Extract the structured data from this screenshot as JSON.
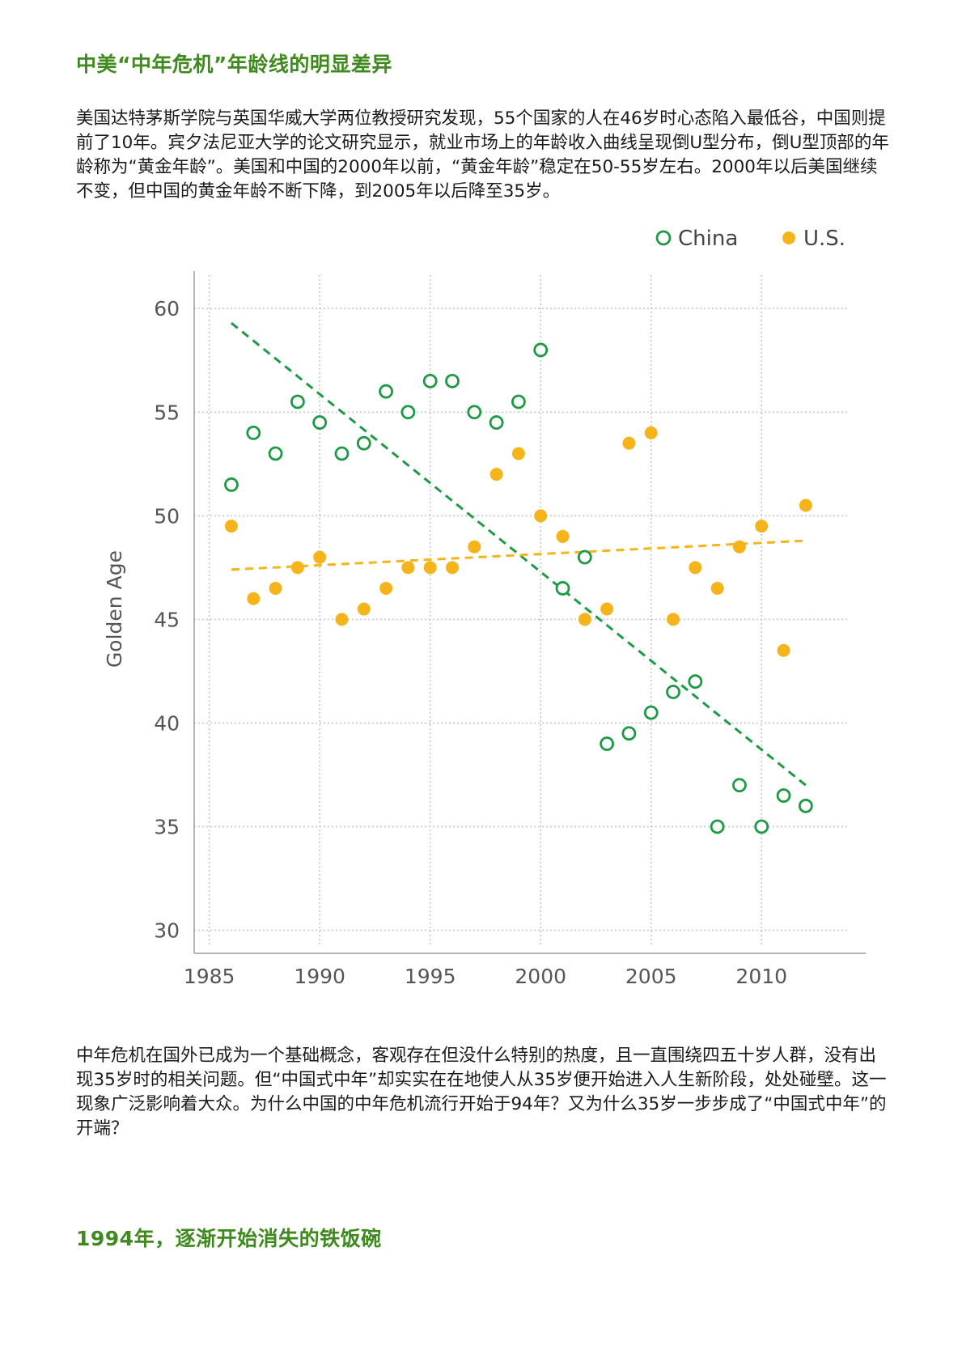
{
  "article": {
    "heading_1": "中美“中年危机”年龄线的明显差异",
    "paragraph_1": "美国达特茅斯学院与英国华威大学两位教授研究发现，55个国家的人在46岁时心态陷入最低谷，中国则提前了10年。宾夕法尼亚大学的论文研究显示，就业市场上的年龄收入曲线呈现倒U型分布，倒U型顶部的年龄称为“黄金年龄”。美国和中国的2000年以前，“黄金年龄”稳定在50-55岁左右。2000年以后美国继续不变，但中国的黄金年龄不断下降，到2005年以后降至35岁。",
    "paragraph_2": "中年危机在国外已成为一个基础概念，客观存在但没什么特别的热度，且一直围绕四五十岁人群，没有出现35岁时的相关问题。但“中国式中年”却实实在在地使人从35岁便开始进入人生新阶段，处处碰壁。这一现象广泛影响着大众。为什么中国的中年危机流行开始于94年？又为什么35岁一步步成了“中国式中年”的开端？",
    "heading_2": "1994年，逐渐开始消失的铁饭碗"
  },
  "colors": {
    "heading": "#3f8a1e",
    "china": "#1e9a45",
    "us": "#f5b51a",
    "axis": "#b5b5b5",
    "grid": "#c8c8c8",
    "tick_text": "#555555"
  },
  "chart_data": {
    "type": "scatter",
    "title": "",
    "xlabel": "",
    "ylabel": "Golden Age",
    "xlim": [
      1984.5,
      2013.8
    ],
    "ylim": [
      29.2,
      62
    ],
    "x_ticks": [
      1985,
      1990,
      1995,
      2000,
      2005,
      2010
    ],
    "x_tick_labels": [
      "1985",
      "1990",
      "1995",
      "2000",
      "2005",
      "2010"
    ],
    "y_ticks": [
      30,
      35,
      40,
      45,
      50,
      55,
      60
    ],
    "y_tick_labels": [
      "30",
      "35",
      "40",
      "45",
      "50",
      "55",
      "60"
    ],
    "grid": true,
    "legend_position": "top-right",
    "series": [
      {
        "name": "China",
        "marker": "hollow-circle",
        "x": [
          1986,
          1987,
          1988,
          1989,
          1990,
          1991,
          1992,
          1993,
          1994,
          1995,
          1996,
          1997,
          1998,
          1999,
          2000,
          2001,
          2002,
          2003,
          2004,
          2005,
          2006,
          2007,
          2008,
          2009,
          2010,
          2011,
          2012
        ],
        "values": [
          51.5,
          54,
          53,
          55.5,
          54.5,
          53,
          53.5,
          56,
          55,
          56.5,
          56.5,
          55,
          54.5,
          55.5,
          58,
          46.5,
          48,
          39,
          39.5,
          40.5,
          41.5,
          42,
          35,
          37,
          35,
          36.5,
          36
        ],
        "trendline": {
          "x": [
            1986,
            2012
          ],
          "y": [
            59.3,
            37
          ]
        }
      },
      {
        "name": "U.S.",
        "marker": "filled-circle",
        "x": [
          1986,
          1987,
          1988,
          1989,
          1990,
          1991,
          1992,
          1993,
          1994,
          1995,
          1996,
          1997,
          1998,
          1999,
          2000,
          2001,
          2002,
          2003,
          2004,
          2005,
          2006,
          2007,
          2008,
          2009,
          2010,
          2011,
          2012
        ],
        "values": [
          49.5,
          46,
          46.5,
          47.5,
          48,
          45,
          45.5,
          46.5,
          47.5,
          47.5,
          47.5,
          48.5,
          52,
          53,
          50,
          49,
          45,
          45.5,
          53.5,
          54,
          45,
          47.5,
          46.5,
          48.5,
          49.5,
          43.5,
          50.5
        ],
        "trendline": {
          "x": [
            1986,
            2012
          ],
          "y": [
            47.4,
            48.8
          ]
        }
      }
    ]
  }
}
